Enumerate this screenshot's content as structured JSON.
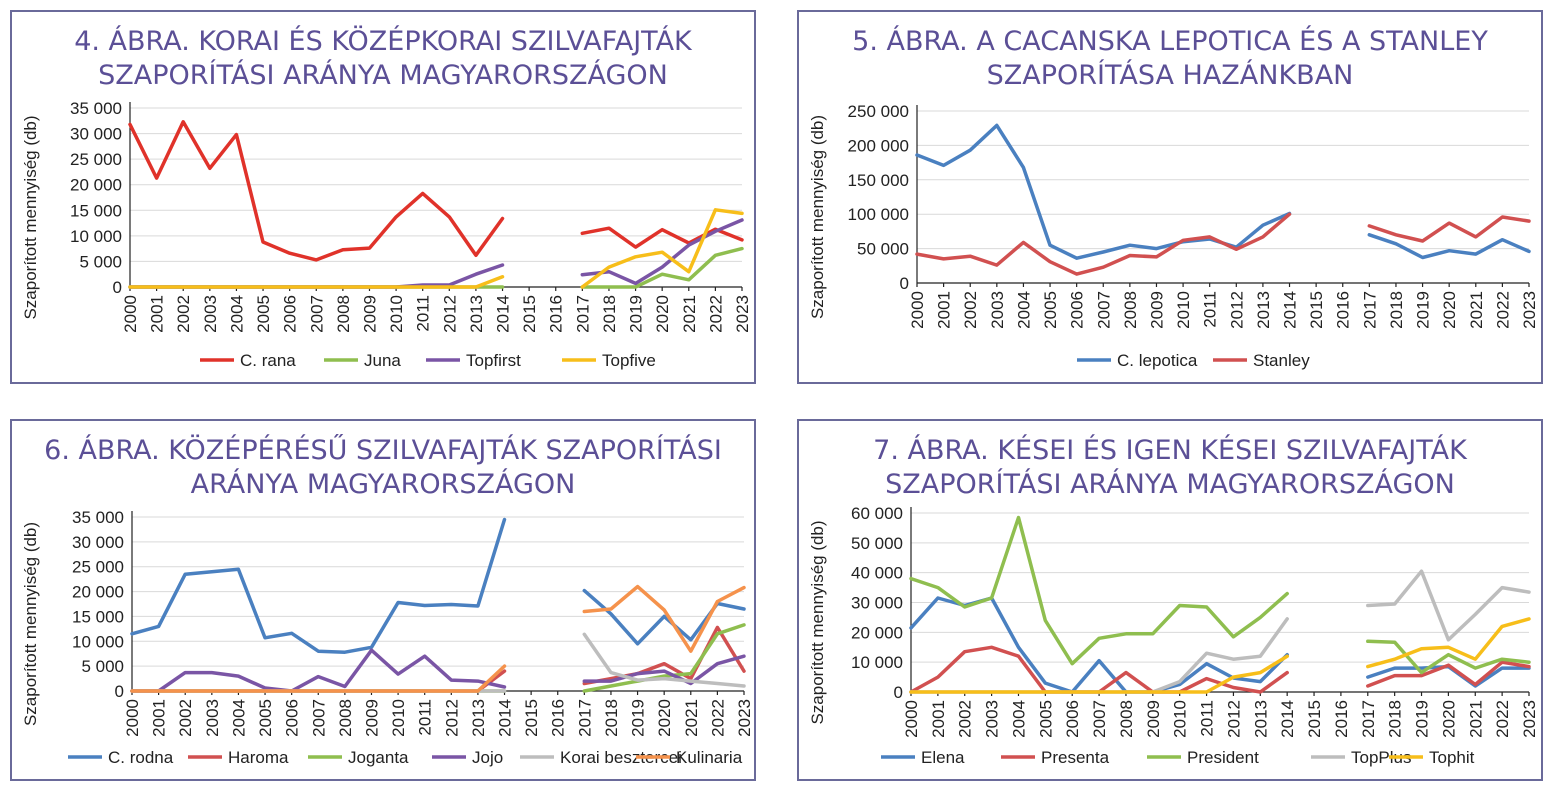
{
  "colors": {
    "red": "#e0322a",
    "green": "#8fbe4f",
    "purple": "#7a55a5",
    "yellow": "#f7be1a",
    "blue": "#4a80c0",
    "lightred": "#d15050",
    "gray": "#bdbdbd",
    "orange": "#f5924c",
    "title": "#5b4f96",
    "border": "#6a6a9a"
  },
  "chart_data": [
    {
      "id": "chart4",
      "type": "line",
      "title_lines": [
        "4. ÁBRA. KORAI ÉS KÖZÉPKORAI SZILVAFAJTÁK",
        "SZAPORÍTÁSI ARÁNYA MAGYARORSZÁGON"
      ],
      "ylabel": "Szaporított mennyiség (db)",
      "ylim": [
        0,
        35000
      ],
      "yticks": [
        0,
        5000,
        10000,
        15000,
        20000,
        25000,
        30000,
        35000
      ],
      "ytick_labels": [
        "0",
        "5 000",
        "10 000",
        "15 000",
        "20 000",
        "25 000",
        "30 000",
        "35 000"
      ],
      "x": [
        "2000",
        "2001",
        "2002",
        "2003",
        "2004",
        "2005",
        "2006",
        "2007",
        "2008",
        "2009",
        "2010",
        "2011",
        "2012",
        "2013",
        "2014",
        "2015",
        "2016",
        "2017",
        "2018",
        "2019",
        "2020",
        "2021",
        "2022",
        "2023"
      ],
      "series": [
        {
          "name": "C. rana",
          "color": "#e0322a",
          "values": [
            31800,
            21300,
            32300,
            23200,
            29800,
            8800,
            6600,
            5300,
            7300,
            7600,
            13700,
            18300,
            13700,
            6200,
            13400,
            null,
            null,
            10500,
            11500,
            7800,
            11200,
            8600,
            11300,
            9200
          ]
        },
        {
          "name": "Juna",
          "color": "#8fbe4f",
          "values": [
            0,
            0,
            0,
            0,
            0,
            0,
            0,
            0,
            0,
            0,
            0,
            0,
            0,
            0,
            0,
            null,
            null,
            0,
            0,
            0,
            2500,
            1400,
            6200,
            7500
          ]
        },
        {
          "name": "Topfirst",
          "color": "#7a55a5",
          "values": [
            0,
            0,
            0,
            0,
            0,
            0,
            0,
            0,
            0,
            0,
            0,
            400,
            400,
            2500,
            4300,
            null,
            null,
            2400,
            3000,
            700,
            3900,
            8200,
            10900,
            13100
          ]
        },
        {
          "name": "Topfive",
          "color": "#f7be1a",
          "values": [
            0,
            0,
            0,
            0,
            0,
            0,
            0,
            0,
            0,
            0,
            0,
            0,
            0,
            0,
            2000,
            null,
            null,
            0,
            3900,
            5900,
            6800,
            3000,
            15100,
            14400
          ]
        }
      ]
    },
    {
      "id": "chart5",
      "type": "line",
      "title_lines": [
        "5. ÁBRA. A CACANSKA LEPOTICA ÉS A STANLEY",
        "SZAPORÍTÁSA HAZÁNKBAN"
      ],
      "ylabel": "Szaporított mennyiség (db)",
      "ylim": [
        0,
        250000
      ],
      "yticks": [
        0,
        50000,
        100000,
        150000,
        200000,
        250000
      ],
      "ytick_labels": [
        "0",
        "50 000",
        "100 000",
        "150 000",
        "200 000",
        "250 000"
      ],
      "x": [
        "2000",
        "2001",
        "2002",
        "2003",
        "2004",
        "2005",
        "2006",
        "2007",
        "2008",
        "2009",
        "2010",
        "2011",
        "2012",
        "2013",
        "2014",
        "2015",
        "2016",
        "2017",
        "2018",
        "2019",
        "2020",
        "2021",
        "2022",
        "2023"
      ],
      "series": [
        {
          "name": "C. lepotica",
          "color": "#4a80c0",
          "values": [
            186000,
            171000,
            193000,
            229000,
            168000,
            55000,
            36000,
            45000,
            55000,
            50000,
            60000,
            64000,
            52000,
            84000,
            101000,
            null,
            null,
            70000,
            57000,
            37000,
            47000,
            42000,
            63000,
            46000
          ]
        },
        {
          "name": "Stanley",
          "color": "#d15050",
          "values": [
            42000,
            35000,
            39000,
            26000,
            59000,
            31000,
            13000,
            23000,
            40000,
            38000,
            62000,
            67000,
            49000,
            67000,
            100000,
            null,
            null,
            83000,
            70000,
            61000,
            87000,
            67000,
            96000,
            90000
          ]
        }
      ]
    },
    {
      "id": "chart6",
      "type": "line",
      "title_lines": [
        "6. ÁBRA. KÖZÉPÉRÉSŰ SZILVAFAJTÁK SZAPORÍTÁSI",
        "ARÁNYA MAGYARORSZÁGON"
      ],
      "ylabel": "Szaporított mennyiség (db)",
      "ylim": [
        0,
        35000
      ],
      "yticks": [
        0,
        5000,
        10000,
        15000,
        20000,
        25000,
        30000,
        35000
      ],
      "ytick_labels": [
        "0",
        "5 000",
        "10 000",
        "15 000",
        "20 000",
        "25 000",
        "30 000",
        "35 000"
      ],
      "x": [
        "2000",
        "2001",
        "2002",
        "2003",
        "2004",
        "2005",
        "2006",
        "2007",
        "2008",
        "2009",
        "2010",
        "2011",
        "2012",
        "2013",
        "2014",
        "2015",
        "2016",
        "2017",
        "2018",
        "2019",
        "2020",
        "2021",
        "2022",
        "2023"
      ],
      "series": [
        {
          "name": "C. rodna",
          "color": "#4a80c0",
          "values": [
            11500,
            13000,
            23500,
            24000,
            24500,
            10700,
            11600,
            8000,
            7800,
            8800,
            17800,
            17200,
            17400,
            17100,
            34500,
            null,
            null,
            20200,
            15500,
            9500,
            15000,
            10300,
            17600,
            16500
          ]
        },
        {
          "name": "Haroma",
          "color": "#d15050",
          "values": [
            0,
            0,
            0,
            0,
            0,
            0,
            0,
            0,
            0,
            0,
            0,
            0,
            0,
            0,
            4000,
            null,
            null,
            1500,
            2500,
            3500,
            5500,
            2500,
            12800,
            4000
          ]
        },
        {
          "name": "Joganta",
          "color": "#8fbe4f",
          "values": [
            0,
            0,
            0,
            0,
            0,
            0,
            0,
            0,
            0,
            0,
            0,
            0,
            0,
            0,
            0,
            null,
            null,
            0,
            1000,
            2000,
            3000,
            3500,
            11500,
            13300
          ]
        },
        {
          "name": "Jojo",
          "color": "#7a55a5",
          "values": [
            0,
            0,
            3700,
            3700,
            3000,
            600,
            0,
            2900,
            900,
            8200,
            3400,
            7000,
            2200,
            2000,
            800,
            null,
            null,
            2000,
            2000,
            3500,
            4000,
            1500,
            5500,
            7000
          ]
        },
        {
          "name": "Korai besztercei",
          "color": "#bdbdbd",
          "values": [
            0,
            0,
            0,
            0,
            0,
            0,
            0,
            0,
            0,
            0,
            0,
            0,
            0,
            0,
            0,
            null,
            null,
            11400,
            3700,
            2200,
            2500,
            2000,
            1500,
            1000
          ]
        },
        {
          "name": "Kulinaria",
          "color": "#f5924c",
          "values": [
            0,
            0,
            0,
            0,
            0,
            0,
            0,
            0,
            0,
            0,
            0,
            0,
            0,
            0,
            5000,
            null,
            null,
            16000,
            16500,
            21000,
            16300,
            8000,
            18000,
            20800
          ]
        }
      ]
    },
    {
      "id": "chart7",
      "type": "line",
      "title_lines": [
        "7. ÁBRA. KÉSEI ÉS IGEN KÉSEI SZILVAFAJTÁK",
        "SZAPORÍTÁSI ARÁNYA MAGYARORSZÁGON"
      ],
      "ylabel": "Szaporított mennyiség (db)",
      "ylim": [
        0,
        60000
      ],
      "yticks": [
        0,
        10000,
        20000,
        30000,
        40000,
        50000,
        60000
      ],
      "ytick_labels": [
        "0",
        "10 000",
        "20 000",
        "30 000",
        "40 000",
        "50 000",
        "60 000"
      ],
      "x": [
        "2000",
        "2001",
        "2002",
        "2003",
        "2004",
        "2005",
        "2006",
        "2007",
        "2008",
        "2009",
        "2010",
        "2011",
        "2012",
        "2013",
        "2014",
        "2015",
        "2016",
        "2017",
        "2018",
        "2019",
        "2020",
        "2021",
        "2022",
        "2023"
      ],
      "series": [
        {
          "name": "Elena",
          "color": "#4a80c0",
          "values": [
            21500,
            31500,
            29000,
            31500,
            15000,
            3000,
            0,
            10500,
            0,
            0,
            2500,
            9500,
            4700,
            3500,
            12500,
            null,
            null,
            5000,
            8000,
            8000,
            8500,
            2000,
            8000,
            8000
          ]
        },
        {
          "name": "Presenta",
          "color": "#d15050",
          "values": [
            0,
            5000,
            13500,
            15000,
            12000,
            0,
            0,
            0,
            6500,
            0,
            0,
            4500,
            1500,
            0,
            6500,
            null,
            null,
            2000,
            5500,
            5500,
            9000,
            2500,
            10000,
            8500
          ]
        },
        {
          "name": "President",
          "color": "#8fbe4f",
          "values": [
            38000,
            35000,
            28500,
            31500,
            58500,
            24000,
            9500,
            18000,
            19500,
            19500,
            29000,
            28500,
            18500,
            25000,
            33000,
            null,
            null,
            17000,
            16700,
            6500,
            12500,
            8000,
            11000,
            10000
          ]
        },
        {
          "name": "TopPlus",
          "color": "#bdbdbd",
          "values": [
            0,
            0,
            0,
            0,
            0,
            0,
            0,
            0,
            0,
            0,
            3500,
            13000,
            11000,
            12000,
            24500,
            null,
            null,
            29000,
            29500,
            40500,
            17500,
            26000,
            35000,
            33500
          ]
        },
        {
          "name": "Tophit",
          "color": "#f7be1a",
          "values": [
            0,
            0,
            0,
            0,
            0,
            0,
            0,
            0,
            0,
            0,
            0,
            0,
            5000,
            6500,
            12000,
            null,
            null,
            8500,
            11000,
            14500,
            15000,
            11000,
            22000,
            24500
          ]
        }
      ]
    }
  ]
}
